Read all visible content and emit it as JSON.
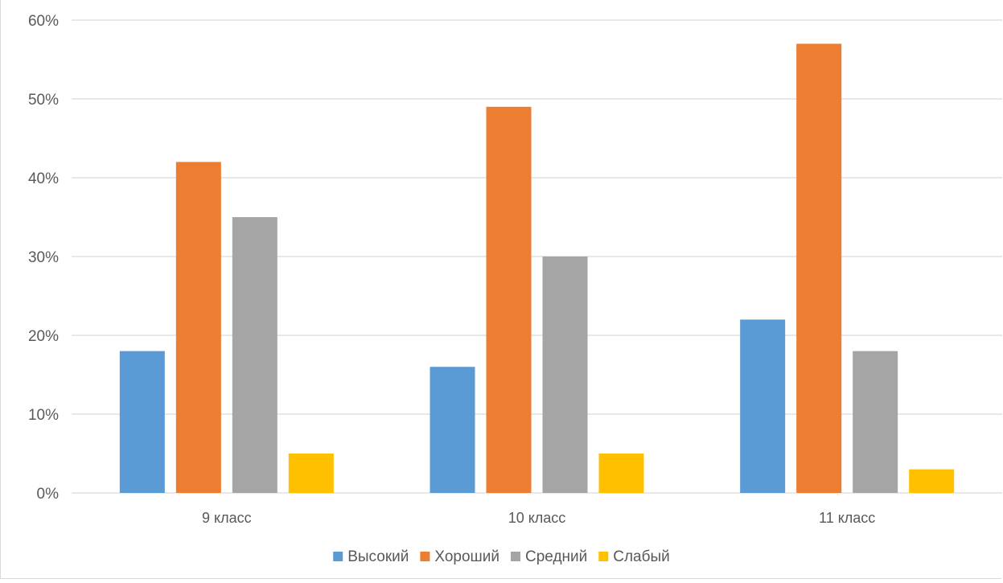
{
  "chart_data": {
    "type": "bar",
    "title": "",
    "xlabel": "",
    "ylabel": "",
    "categories": [
      "9 класс",
      "10 класс",
      "11 класс"
    ],
    "series": [
      {
        "name": "Высокий",
        "values": [
          18,
          16,
          22
        ],
        "color": "#5b9bd5"
      },
      {
        "name": "Хороший",
        "values": [
          42,
          49,
          57
        ],
        "color": "#ed7d31"
      },
      {
        "name": "Средний",
        "values": [
          35,
          30,
          18
        ],
        "color": "#a5a5a5"
      },
      {
        "name": "Слабый",
        "values": [
          5,
          5,
          3
        ],
        "color": "#ffc000"
      }
    ],
    "ylim": [
      0,
      60
    ],
    "yticks": [
      "0%",
      "10%",
      "20%",
      "30%",
      "40%",
      "50%",
      "60%"
    ],
    "grid": true,
    "legend_position": "bottom",
    "gridline_color": "#d9d9d9",
    "text_color": "#595959"
  }
}
